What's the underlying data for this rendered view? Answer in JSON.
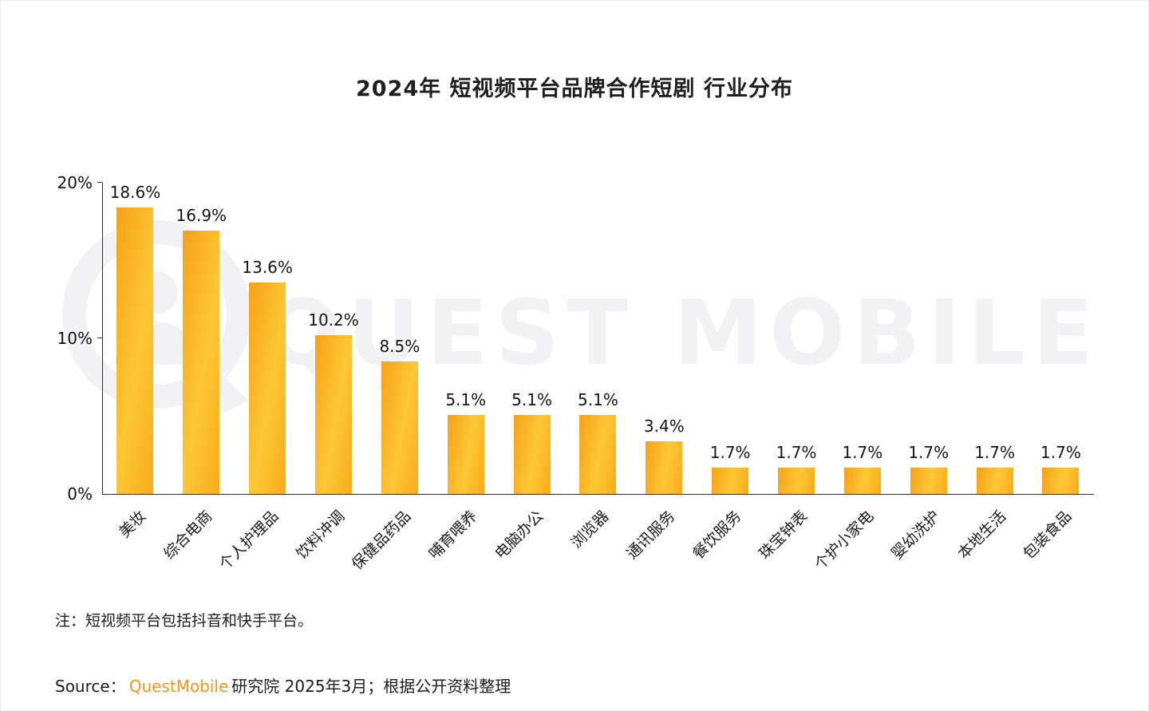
{
  "title": "2024年 短视频平台品牌合作短剧 行业分布",
  "watermark": {
    "text": "QUEST MOBILE"
  },
  "note": "注：短视频平台包括抖音和快手平台。",
  "source": {
    "prefix": "Source：",
    "brand": "QuestMobile",
    "rest": "研究院 2025年3月；根据公开资料整理"
  },
  "colors": {
    "bar_gradient_start": "#f6a217",
    "bar_gradient_end": "#fdc735",
    "brand_orange": "#f7941e",
    "watermark_gray": "#f2f2f4",
    "axis": "#2b2b2b"
  },
  "chart_data": {
    "type": "bar",
    "title": "2024年 短视频平台品牌合作短剧 行业分布",
    "categories": [
      "美妆",
      "综合电商",
      "个人护理品",
      "饮料冲调",
      "保健品药品",
      "哺育喂养",
      "电脑办公",
      "浏览器",
      "通讯服务",
      "餐饮服务",
      "珠宝钟表",
      "个护小家电",
      "婴幼洗护",
      "本地生活",
      "包装食品"
    ],
    "values": [
      18.6,
      16.9,
      13.6,
      10.2,
      8.5,
      5.1,
      5.1,
      5.1,
      3.4,
      1.7,
      1.7,
      1.7,
      1.7,
      1.7,
      1.7
    ],
    "value_labels": [
      "18.6%",
      "16.9%",
      "13.6%",
      "10.2%",
      "8.5%",
      "5.1%",
      "5.1%",
      "5.1%",
      "3.4%",
      "1.7%",
      "1.7%",
      "1.7%",
      "1.7%",
      "1.7%",
      "1.7%"
    ],
    "xlabel": "",
    "ylabel": "",
    "ylim": [
      0,
      20
    ],
    "yticks": [
      {
        "value": 0,
        "label": "0%"
      },
      {
        "value": 10,
        "label": "10%"
      },
      {
        "value": 20,
        "label": "20%"
      }
    ],
    "grid": false,
    "legend": false
  }
}
